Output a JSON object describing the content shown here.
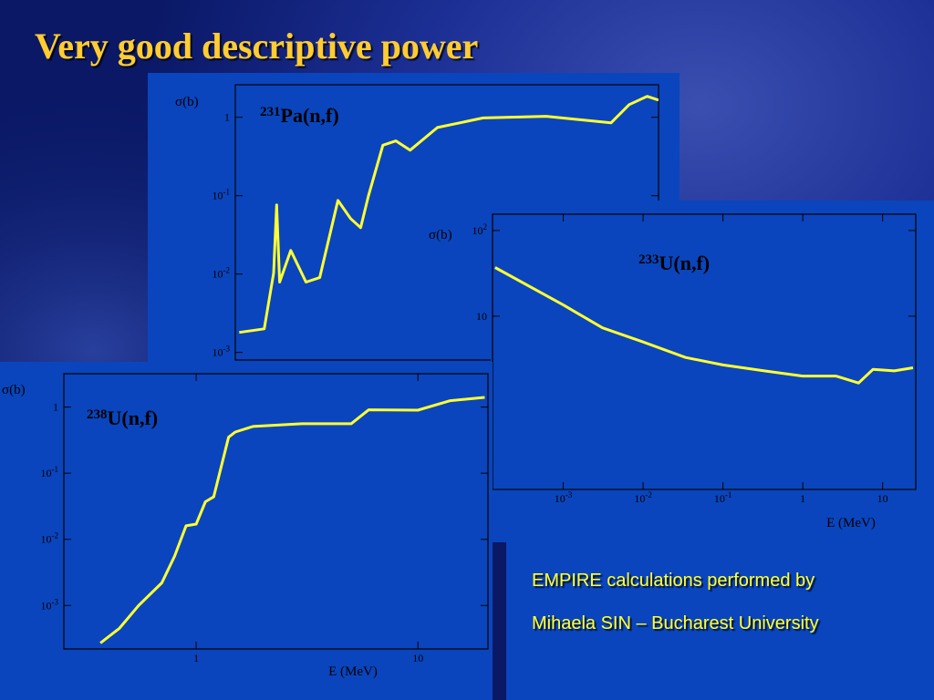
{
  "slide": {
    "title": "Very good descriptive power",
    "note": [
      "EMPIRE calculations performed by",
      "Mihaela SIN – Bucharest University"
    ]
  },
  "chart_data": [
    {
      "type": "line",
      "title_superscript": "231",
      "title": "Pa(n,f)",
      "y_label": "σ(b)",
      "log_x": true,
      "log_y": true,
      "color": "#ffff33",
      "xlim": [
        0.34,
        7.5
      ],
      "ylim": [
        0.0008,
        2.6
      ],
      "yticks": [
        1,
        {
          "value": 0.1,
          "label": "10",
          "exponent": "-1"
        },
        {
          "value": 0.01,
          "label": "10",
          "exponent": "-2"
        },
        {
          "value": 0.001,
          "label": "10",
          "exponent": "-3"
        }
      ],
      "x": [
        0.35,
        0.42,
        0.45,
        0.46,
        0.47,
        0.51,
        0.57,
        0.63,
        0.72,
        0.79,
        0.85,
        0.9,
        1.0,
        1.1,
        1.22,
        1.49,
        2.08,
        3.3,
        5.3,
        6.05,
        6.9,
        7.5
      ],
      "values": [
        0.0018,
        0.002,
        0.0103,
        0.076,
        0.0079,
        0.02,
        0.0079,
        0.009,
        0.087,
        0.051,
        0.039,
        0.1,
        0.44,
        0.5,
        0.38,
        0.74,
        0.98,
        1.03,
        0.85,
        1.45,
        1.85,
        1.66
      ]
    },
    {
      "type": "line",
      "title_superscript": "233",
      "title": "U(n,f)",
      "y_label": "σ(b)",
      "x_label": "E (MeV)",
      "log_x": true,
      "log_y": true,
      "color": "#ffff33",
      "xlim": [
        0.00013,
        26
      ],
      "ylim": [
        0.095,
        155
      ],
      "xticks": [
        {
          "value": 0.001,
          "label": "10",
          "exponent": "-3"
        },
        {
          "value": 0.01,
          "label": "10",
          "exponent": "-2"
        },
        {
          "value": 0.1,
          "label": "10",
          "exponent": "-1"
        },
        1,
        10
      ],
      "yticks": [
        {
          "value": 100,
          "label": "10",
          "exponent": "2"
        },
        10
      ],
      "x": [
        0.00014,
        0.001,
        0.0031,
        0.01,
        0.034,
        0.1,
        0.33,
        1,
        2.6,
        5.0,
        7.6,
        14,
        24
      ],
      "values": [
        37,
        13.5,
        7.3,
        5.0,
        3.3,
        2.7,
        2.3,
        2.0,
        2.0,
        1.66,
        2.4,
        2.3,
        2.5
      ]
    },
    {
      "type": "line",
      "title_superscript": "238",
      "title": "U(n,f)",
      "y_label": "σ(b)",
      "x_label": "E (MeV)",
      "log_x": true,
      "log_y": true,
      "color": "#ffff33",
      "xlim": [
        0.253,
        20.7
      ],
      "ylim": [
        0.00022,
        3.2
      ],
      "xticks": [
        1,
        10
      ],
      "yticks": [
        1,
        {
          "value": 0.1,
          "label": "10",
          "exponent": "-1"
        },
        {
          "value": 0.01,
          "label": "10",
          "exponent": "-2"
        },
        {
          "value": 0.001,
          "label": "10",
          "exponent": "-3"
        }
      ],
      "x": [
        0.37,
        0.45,
        0.55,
        0.7,
        0.8,
        0.9,
        1.0,
        1.1,
        1.2,
        1.4,
        1.5,
        1.8,
        3,
        5,
        6,
        10,
        14,
        20
      ],
      "values": [
        0.00027,
        0.00045,
        0.001,
        0.0022,
        0.0056,
        0.016,
        0.017,
        0.037,
        0.044,
        0.35,
        0.42,
        0.51,
        0.56,
        0.56,
        0.91,
        0.9,
        1.25,
        1.4
      ]
    }
  ]
}
